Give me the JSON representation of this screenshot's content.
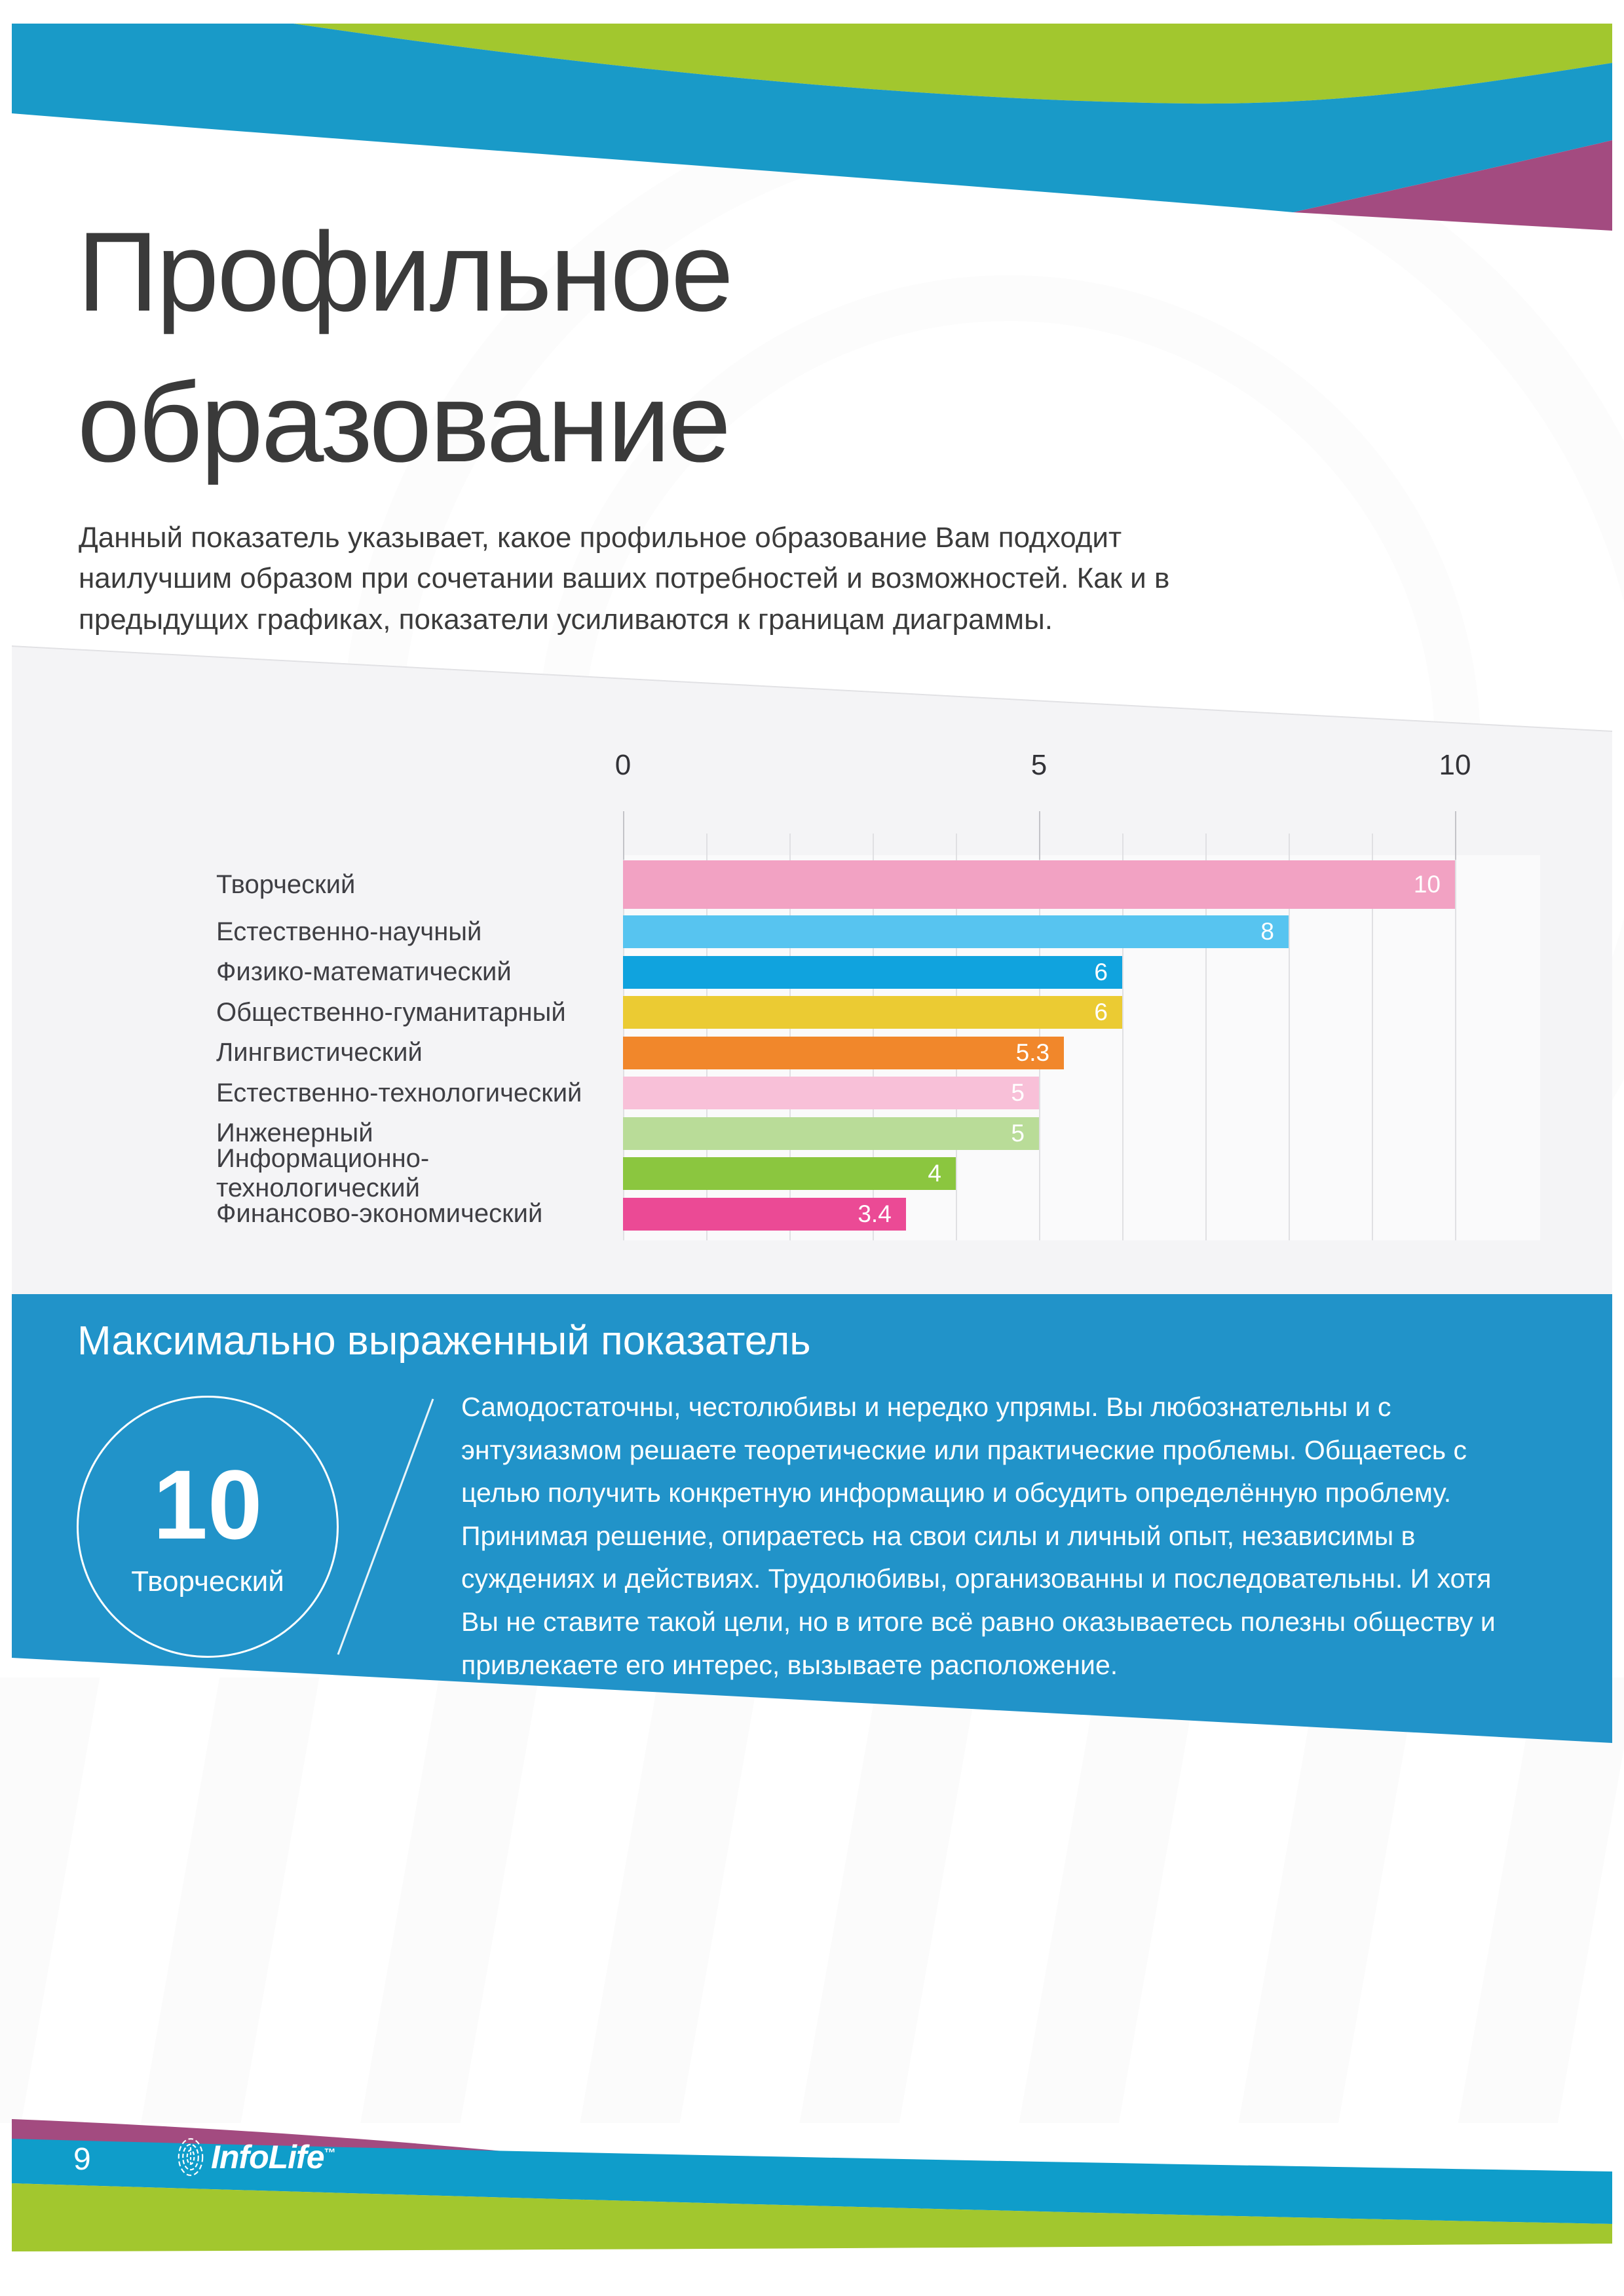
{
  "page": {
    "number": "9",
    "brand": "InfoLife",
    "brand_tm": "™"
  },
  "header": {
    "title": "Профильное\nобразование",
    "intro": "Данный показатель указывает, какое профильное образование Вам подходит наилучшим образом при сочетании ваших потребностей и возможностей. Как и в предыдущих графиках, показатели усиливаются к границам диаграммы."
  },
  "chart_data": {
    "type": "bar",
    "orientation": "horizontal",
    "title": "",
    "xlabel": "",
    "ylabel": "",
    "xlim": [
      0,
      10
    ],
    "x_ticks": [
      0,
      5,
      10
    ],
    "grid": true,
    "categories": [
      "Творческий",
      "Естественно-научный",
      "Физико-математический",
      "Общественно-гуманитарный",
      "Лингвистический",
      "Естественно-технологический",
      "Инженерный",
      "Информационно-технологический",
      "Финансово-экономический"
    ],
    "values": [
      10,
      8,
      6,
      6,
      5.3,
      5,
      5,
      4,
      3.4
    ],
    "value_labels": [
      "10",
      "8",
      "6",
      "6",
      "5.3",
      "5",
      "5",
      "4",
      "3.4"
    ],
    "bar_colors": [
      "#f2a2c3",
      "#57c4f0",
      "#10a3de",
      "#ebcb33",
      "#f1872b",
      "#f8c0d8",
      "#b9dc98",
      "#8bc63f",
      "#eb4a95"
    ]
  },
  "max_section": {
    "heading": "Максимально выраженный показатель",
    "score": "10",
    "score_label": "Творческий",
    "description": "Самодостаточны, честолюбивы и нередко упрямы. Вы любознательны и с энтузиазмом решаете теоретические или практические проблемы. Общаетесь с целью получить конкретную информацию и обсудить определённую проблему. Принимая решение, опираетесь на свои силы и личный опыт, независимы в суждениях и действиях. Трудолюбивы, организованны и последовательны. И хотя Вы не ставите такой цели, но в итоге всё равно оказываетесь полезны обществу и привлекаете его интерес, вызываете расположение."
  },
  "colors": {
    "green": "#a2c72e",
    "blue_wave": "#199ac8",
    "magenta": "#a34b80",
    "panel_blue": "#2193c9",
    "footer_blue": "#0f9dca",
    "chart_bg": "#f4f4f6"
  }
}
